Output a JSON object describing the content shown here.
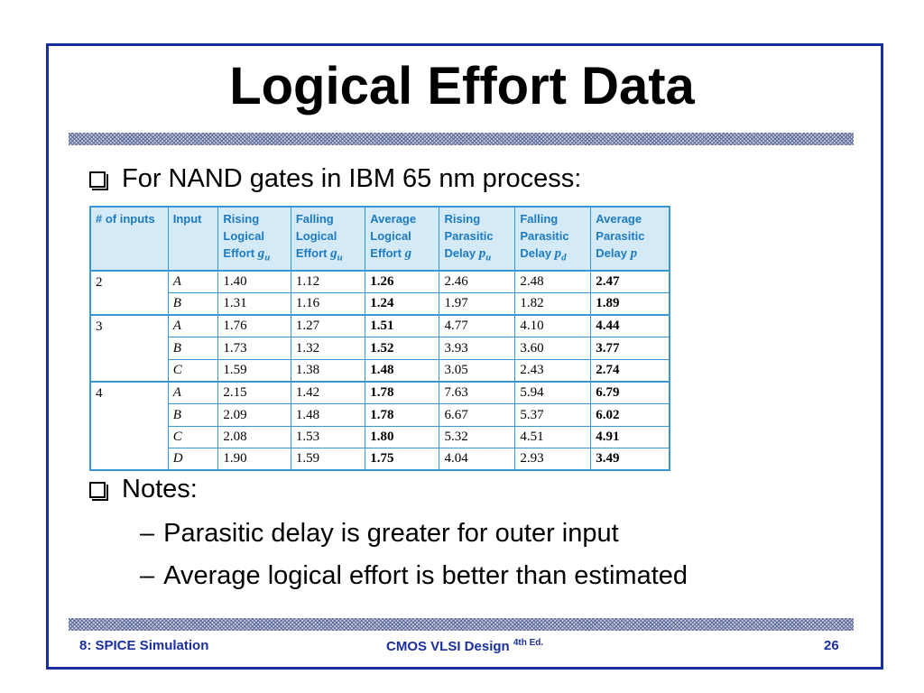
{
  "title": "Logical Effort Data",
  "bullets": {
    "intro": "For NAND gates in IBM 65 nm process:",
    "notes": "Notes:",
    "sub1": "Parasitic delay is greater for outer input",
    "sub2": "Average logical effort is better than estimated",
    "dash": "–"
  },
  "table": {
    "headers": [
      [
        "# of inputs"
      ],
      [
        "Input"
      ],
      [
        "Rising",
        "Logical",
        "Effort g_u"
      ],
      [
        "Falling",
        "Logical",
        "Effort g_u"
      ],
      [
        "Average",
        "Logical",
        "Effort g"
      ],
      [
        "Rising",
        "Parasitic",
        "Delay p_u"
      ],
      [
        "Falling",
        "Parasitic",
        "Delay p_d"
      ],
      [
        "Average",
        "Parasitic",
        "Delay p"
      ]
    ],
    "groups": [
      {
        "inputs": "2",
        "rows": [
          [
            "A",
            "1.40",
            "1.12",
            "1.26",
            "2.46",
            "2.48",
            "2.47"
          ],
          [
            "B",
            "1.31",
            "1.16",
            "1.24",
            "1.97",
            "1.82",
            "1.89"
          ]
        ]
      },
      {
        "inputs": "3",
        "rows": [
          [
            "A",
            "1.76",
            "1.27",
            "1.51",
            "4.77",
            "4.10",
            "4.44"
          ],
          [
            "B",
            "1.73",
            "1.32",
            "1.52",
            "3.93",
            "3.60",
            "3.77"
          ],
          [
            "C",
            "1.59",
            "1.38",
            "1.48",
            "3.05",
            "2.43",
            "2.74"
          ]
        ]
      },
      {
        "inputs": "4",
        "rows": [
          [
            "A",
            "2.15",
            "1.42",
            "1.78",
            "7.63",
            "5.94",
            "6.79"
          ],
          [
            "B",
            "2.09",
            "1.48",
            "1.78",
            "6.67",
            "5.37",
            "6.02"
          ],
          [
            "C",
            "2.08",
            "1.53",
            "1.80",
            "5.32",
            "4.51",
            "4.91"
          ],
          [
            "D",
            "1.90",
            "1.59",
            "1.75",
            "4.04",
            "2.93",
            "3.49"
          ]
        ]
      }
    ]
  },
  "footer": {
    "left": "8: SPICE Simulation",
    "center": "CMOS VLSI Design",
    "edition": "4th Ed.",
    "page": "26"
  },
  "colors": {
    "frame": "#1a2f9e",
    "table_header_bg": "#d4eaf6",
    "table_header_text": "#1d7bc1",
    "table_border": "#3a97d4"
  }
}
